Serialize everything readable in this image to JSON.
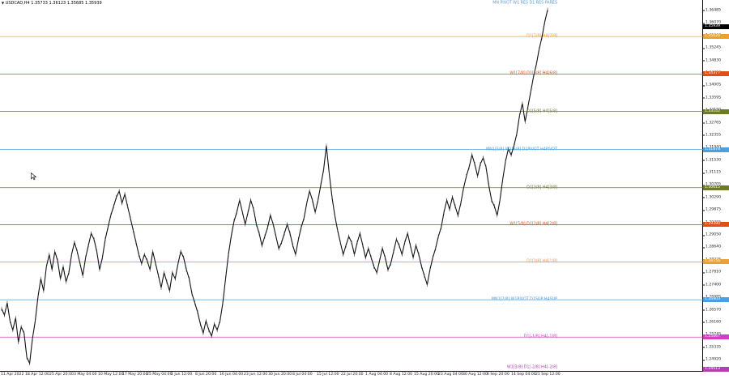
{
  "header": {
    "symbol_label": "USDCAD,H4",
    "ohlc": "1.35733 1.36123 1.35685 1.35939",
    "menu_icon": "triangle-down-icon"
  },
  "price_axis": {
    "min": 1.2452,
    "max": 1.3683,
    "ticks": [
      "1.36485",
      "1.36070",
      "1.35660",
      "1.35245",
      "1.34830",
      "1.34420",
      "1.34005",
      "1.33595",
      "1.33180",
      "1.32765",
      "1.32355",
      "1.31940",
      "1.31530",
      "1.31115",
      "1.30705",
      "1.30290",
      "1.29875",
      "1.29465",
      "1.29050",
      "1.28640",
      "1.28225",
      "1.27810",
      "1.27400",
      "1.26985",
      "1.26570",
      "1.26160",
      "1.25745",
      "1.25335",
      "1.24920"
    ],
    "current_price": "1.35939",
    "current_color": "#000000"
  },
  "time_axis": {
    "labels": [
      "11 Apr 2022",
      "18 Apr 12:00",
      "25 Apr 20:00",
      "3 May 04:00",
      "10 May 12:00",
      "17 May 20:00",
      "25 May 04:00",
      "1 Jun 12:00",
      "8 Jun 20:00",
      "16 Jun 04:00",
      "23 Jun 12:00",
      "30 Jun 20:00",
      "8 Jul 04:00",
      "15 Jul 12:00",
      "22 Jul 20:00",
      "1 Aug 04:00",
      "8 Aug 12:00",
      "15 Aug 20:00",
      "23 Aug 04:00",
      "30 Aug 12:00",
      "6 Sep 20:00",
      "14 Sep 04:00",
      "21 Sep 12:00"
    ]
  },
  "levels": [
    {
      "label": "MN PIVOT W1 RES D1 RES PARES",
      "price": 1.36835,
      "price_tag": "",
      "color": "#5b9bd5",
      "line": false
    },
    {
      "label": "D1[7/8] H4[7/8]",
      "price": 1.3562,
      "price_tag": "1.35620",
      "color": "#f0a030",
      "line": true
    },
    {
      "label": "W1[7/8] D1[6/8] H4[6/8]",
      "price": 1.34377,
      "price_tag": "1.34377",
      "color": "#e05010",
      "line": true
    },
    {
      "label": "D1[5/8] H4[5/8]",
      "price": 1.33142,
      "price_tag": "1.33142",
      "color": "#6b7b2a",
      "line": true
    },
    {
      "label": "MN1[5/8] W1[6/8] D1PIVOT H4PIVOT",
      "price": 1.31878,
      "price_tag": "1.31878",
      "color": "#4aa0e0",
      "line": true
    },
    {
      "label": "D1[3/8] H4[3/8]",
      "price": 1.30615,
      "price_tag": "1.30615",
      "color": "#6b7b2a",
      "line": true
    },
    {
      "label": "W1[5/8] D1[2/8] H4[2/8]",
      "price": 1.2939,
      "price_tag": "1.29390",
      "color": "#e05010",
      "line": true
    },
    {
      "label": "D1[1/8] H4[1/8]",
      "price": 1.28156,
      "price_tag": "1.28156",
      "color": "#f0a030",
      "line": true
    },
    {
      "label": "MN1[2/8] W1PIVOT D1SUP H4SUP",
      "price": 1.26903,
      "price_tag": "1.26903",
      "color": "#4aa0e0",
      "line": true
    },
    {
      "label": "D1[-1/8] H4[-1/8]",
      "price": 1.25667,
      "price_tag": "1.25667",
      "color": "#d040c0",
      "line": true
    },
    {
      "label": "W1[3/8] D1[-2/8] H4[-2/8]",
      "price": 1.24513,
      "price_tag": "1.24513",
      "color": "#b040b0",
      "line": true
    }
  ],
  "chart_data": {
    "type": "line",
    "series": [
      {
        "values": [
          1.266,
          1.264,
          1.268,
          1.262,
          1.259,
          1.263,
          1.255,
          1.26,
          1.258,
          1.25,
          1.248,
          1.256,
          1.262,
          1.27,
          1.276,
          1.272,
          1.28,
          1.284,
          1.279,
          1.285,
          1.282,
          1.276,
          1.28,
          1.275,
          1.278,
          1.284,
          1.288,
          1.285,
          1.281,
          1.277,
          1.283,
          1.287,
          1.291,
          1.289,
          1.285,
          1.279,
          1.283,
          1.289,
          1.293,
          1.297,
          1.3,
          1.303,
          1.305,
          1.301,
          1.304,
          1.3,
          1.296,
          1.292,
          1.288,
          1.284,
          1.281,
          1.284,
          1.282,
          1.279,
          1.285,
          1.281,
          1.277,
          1.273,
          1.278,
          1.275,
          1.272,
          1.278,
          1.276,
          1.281,
          1.285,
          1.283,
          1.279,
          1.276,
          1.271,
          1.268,
          1.265,
          1.261,
          1.258,
          1.262,
          1.259,
          1.257,
          1.261,
          1.259,
          1.262,
          1.268,
          1.276,
          1.284,
          1.29,
          1.295,
          1.298,
          1.302,
          1.298,
          1.294,
          1.298,
          1.302,
          1.299,
          1.294,
          1.291,
          1.287,
          1.29,
          1.293,
          1.297,
          1.294,
          1.29,
          1.286,
          1.288,
          1.291,
          1.294,
          1.291,
          1.287,
          1.284,
          1.289,
          1.293,
          1.296,
          1.301,
          1.305,
          1.302,
          1.298,
          1.302,
          1.307,
          1.312,
          1.32,
          1.311,
          1.303,
          1.297,
          1.292,
          1.288,
          1.284,
          1.287,
          1.29,
          1.288,
          1.284,
          1.288,
          1.291,
          1.287,
          1.283,
          1.286,
          1.283,
          1.28,
          1.278,
          1.282,
          1.286,
          1.283,
          1.279,
          1.281,
          1.285,
          1.289,
          1.287,
          1.284,
          1.288,
          1.291,
          1.287,
          1.283,
          1.287,
          1.284,
          1.28,
          1.277,
          1.274,
          1.279,
          1.283,
          1.286,
          1.29,
          1.293,
          1.298,
          1.302,
          1.299,
          1.303,
          1.3,
          1.297,
          1.301,
          1.306,
          1.31,
          1.313,
          1.317,
          1.314,
          1.31,
          1.314,
          1.316,
          1.313,
          1.307,
          1.302,
          1.3,
          1.297,
          1.302,
          1.309,
          1.315,
          1.319,
          1.317,
          1.32,
          1.324,
          1.33,
          1.334,
          1.328,
          1.333,
          1.338,
          1.343,
          1.347,
          1.352,
          1.356,
          1.361,
          1.365
        ]
      }
    ],
    "x_range": [
      "11 Apr 2022",
      "21 Sep 12:00"
    ],
    "ylim": [
      1.2452,
      1.3683
    ]
  }
}
